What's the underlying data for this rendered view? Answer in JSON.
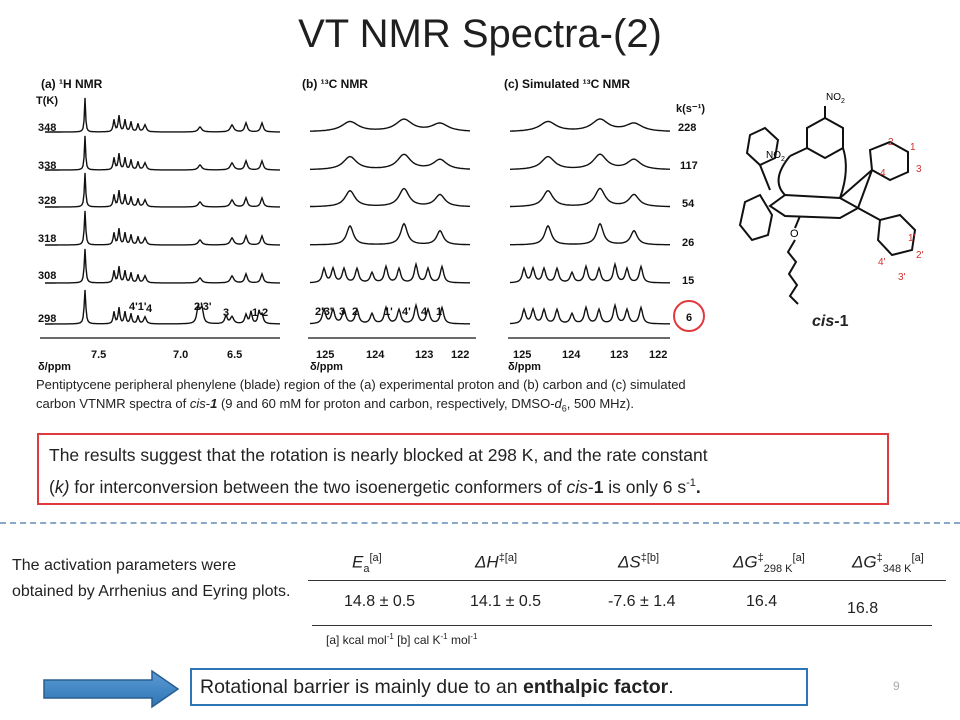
{
  "slide": {
    "title": "VT NMR Spectra-(2)",
    "page_number": "9"
  },
  "spectra": {
    "panel_a": {
      "label": "(a) ¹H NMR",
      "axis_label": "δ/ppm",
      "temp_header": "T(K)",
      "temps": [
        "348",
        "338",
        "328",
        "318",
        "308",
        "298"
      ],
      "ticks": [
        "7.5",
        "7.0",
        "6.5"
      ],
      "assignments": [
        "4'1'",
        "4",
        "2'3'",
        "3",
        "1",
        "2"
      ]
    },
    "panel_b": {
      "label": "(b) ¹³C NMR",
      "axis_label": "δ/ppm",
      "ticks": [
        "125",
        "124",
        "123",
        "122"
      ],
      "assignments": [
        "2'3'",
        "3",
        "2",
        "1'",
        "4'",
        "4",
        "1"
      ]
    },
    "panel_c": {
      "label": "(c) Simulated ¹³C NMR",
      "axis_label": "δ/ppm",
      "k_header": "k(s⁻¹)",
      "rates": [
        "228",
        "117",
        "54",
        "26",
        "15",
        "6"
      ],
      "ticks": [
        "125",
        "124",
        "123",
        "122"
      ]
    }
  },
  "molecule": {
    "label_prefix": "cis-",
    "label_num": "1",
    "no2_top": "NO",
    "no2_left": "NO",
    "no2_sub": "2",
    "atom_o": "O",
    "numbers": [
      "2",
      "1",
      "3",
      "4",
      "1'",
      "4'",
      "2'",
      "3'"
    ]
  },
  "caption": {
    "line1": "Pentiptycene peripheral phenylene (blade) region of the (a) experimental proton and (b) carbon and (c) simulated",
    "line2_a": "carbon VTNMR spectra of ",
    "line2_cis": "cis",
    "line2_b": "-",
    "line2_num": "1",
    "line2_c": " (9 and 60 mM for proton and carbon, respectively, DMSO-",
    "line2_d": "d",
    "line2_sub": "6",
    "line2_e": ", 500 MHz)."
  },
  "result": {
    "l1": "The results suggest that the rotation is nearly blocked at 298 K, and the rate constant",
    "l2a": "(",
    "l2k": "k)",
    "l2b": " for interconversion between the two isoenergetic conformers of ",
    "l2cis": "cis",
    "l2dash": "-",
    "l2num": "1",
    "l2c": " is only 6 s",
    "l2sup": "-1",
    "l2end": "."
  },
  "activation": {
    "text": "The activation parameters were obtained by Arrhenius and Eyring plots.",
    "headers": {
      "ea": "E",
      "ea_sub": "a",
      "ea_sup": "[a]",
      "dh": "ΔH",
      "dh_sup": "‡[a]",
      "ds": "ΔS",
      "ds_sup": "‡[b]",
      "dg298": "ΔG",
      "dg298_sup": "‡",
      "dg298_sub": "298 K",
      "dg298_note": "[a]",
      "dg348": "ΔG",
      "dg348_sup": "‡",
      "dg348_sub": "348 K",
      "dg348_note": "[a]"
    },
    "values": {
      "ea": "14.8 ± 0.5",
      "dh": "14.1 ± 0.5",
      "ds": "-7.6 ± 1.4",
      "dg298": "16.4",
      "dg348": "16.8"
    },
    "footnote_a": "[a] kcal mol",
    "footnote_a_sup": "-1",
    "footnote_b": " [b] cal K",
    "footnote_b_sup": "-1",
    "footnote_c": " mol",
    "footnote_c_sup": "-1"
  },
  "conclusion": {
    "pre": "Rotational barrier is mainly due to an ",
    "bold": "enthalpic factor",
    "post": "."
  }
}
